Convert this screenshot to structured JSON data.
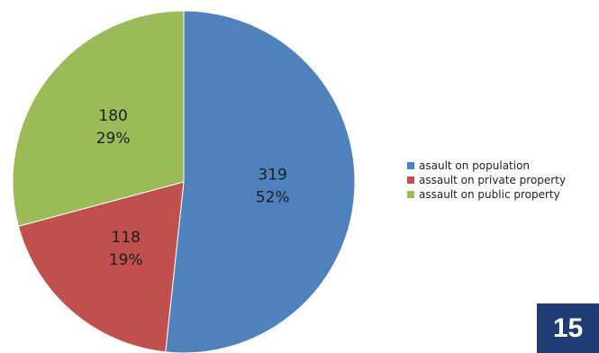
{
  "chart_data": {
    "type": "pie",
    "categories": [
      "asault on population",
      "assault on private property",
      "assault on public property"
    ],
    "values": [
      319,
      118,
      180
    ],
    "percent_labels": [
      "52%",
      "19%",
      "29%"
    ],
    "colors": [
      "#4f81bd",
      "#c0504d",
      "#9bbb59"
    ],
    "legend_placement": "right"
  },
  "page_number": "15"
}
